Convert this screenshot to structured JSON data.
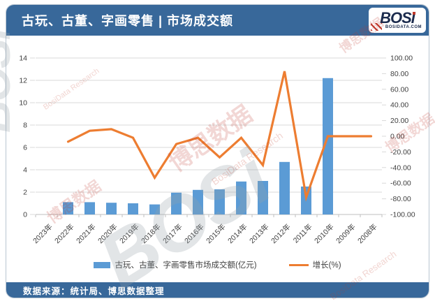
{
  "header": {
    "title": "古玩、古董、字画零售 | 市场成交额",
    "logo": {
      "brand": "BOSi",
      "subtext": "BOSIDATA.COM"
    }
  },
  "footer": {
    "source": "数据来源：统计局、博思数据整理"
  },
  "legend": {
    "bar_label": "古玩、古董、字画零售市场成交额(亿元)",
    "line_label": "增长(%)"
  },
  "watermark": {
    "cn": "博思数据",
    "en": "BosiData Research",
    "brand": "BOSi"
  },
  "colors": {
    "header_bg": "#38689a",
    "bar": "#5B9BD5",
    "line": "#ED7D31",
    "grid": "#d9d9d9",
    "axis": "#bfbfbf",
    "tick_text": "#3f3f3f"
  },
  "chart_data": {
    "type": "bar",
    "subtype": "bar+line combo, dual axis",
    "categories": [
      "2023年",
      "2022年",
      "2021年",
      "2020年",
      "2019年",
      "2018年",
      "2017年",
      "2016年",
      "2015年",
      "2014年",
      "2013年",
      "2012年",
      "2011年",
      "2010年",
      "2009年",
      "2008年"
    ],
    "series": [
      {
        "name": "古玩、古董、字画零售市场成交额(亿元)",
        "type": "bar",
        "axis": "left",
        "color": "#5B9BD5",
        "values": [
          null,
          1.1,
          1.1,
          1.05,
          1.0,
          0.9,
          1.95,
          2.2,
          2.25,
          2.95,
          3.0,
          4.7,
          2.5,
          12.2,
          null,
          null
        ]
      },
      {
        "name": "增长(%)",
        "type": "line",
        "axis": "right",
        "color": "#ED7D31",
        "values": [
          null,
          -7,
          7,
          9,
          -2,
          -53,
          -10,
          -2,
          -27,
          -2,
          -37,
          83,
          -78,
          0,
          0,
          0
        ]
      }
    ],
    "left_axis": {
      "min": 0,
      "max": 14,
      "step": 2,
      "ticks": [
        0,
        2,
        4,
        6,
        8,
        10,
        12,
        14
      ]
    },
    "right_axis": {
      "min": -100,
      "max": 100,
      "step": 20,
      "tick_labels": [
        "100.00",
        "80.00",
        "60.00",
        "40.00",
        "20.00",
        "0.00",
        "-20.00",
        "-40.00",
        "-60.00",
        "-80.00",
        "-100.00"
      ]
    },
    "grid": true,
    "legend_position": "bottom",
    "title": "古玩、古董、字画零售 | 市场成交额",
    "xlabel": "",
    "ylabel_left": "亿元",
    "ylabel_right": "%"
  }
}
